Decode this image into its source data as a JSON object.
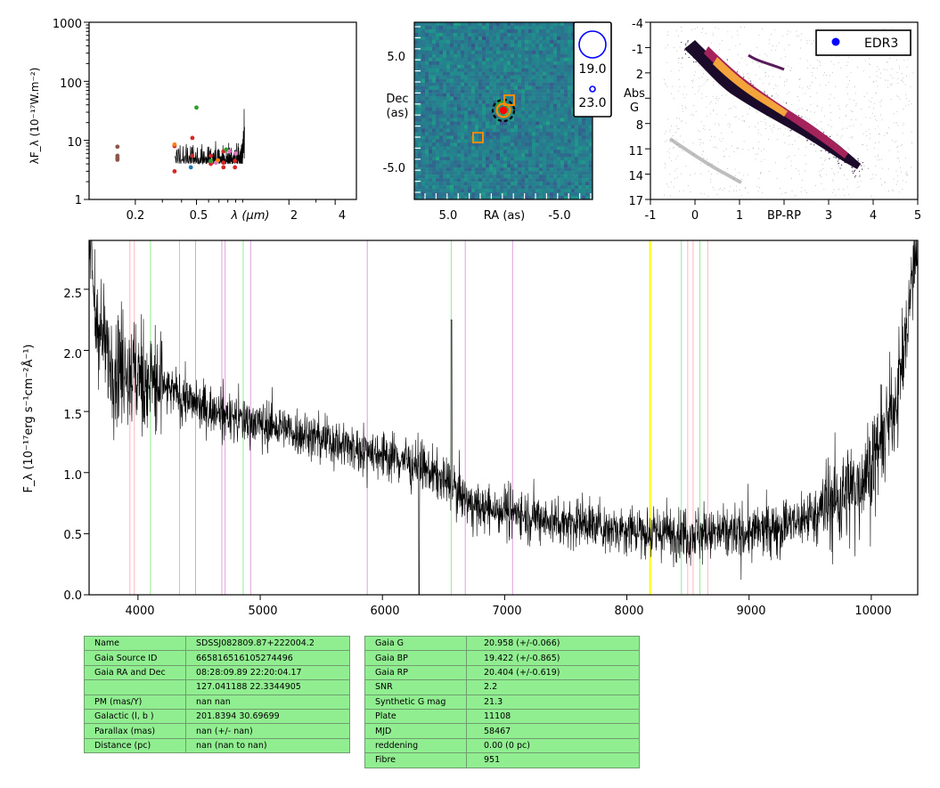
{
  "sed": {
    "ylabel": "λF_λ (10⁻¹⁷W.m⁻²)",
    "xlabel": "λ (μm)",
    "ytick_labels": [
      "1",
      "10",
      "100",
      "1000"
    ],
    "xtick_labels": [
      "0.2",
      "0.5",
      "2",
      "4"
    ]
  },
  "image": {
    "ylabel": [
      "Dec",
      "(as)"
    ],
    "xlabel": "RA (as)",
    "ytick_labels": [
      "5.0",
      "-5.0"
    ],
    "xtick_labels": [
      "5.0",
      "-5.0"
    ],
    "legend_labels": [
      "19.0",
      "23.0"
    ]
  },
  "cmd": {
    "ylabel": [
      "Abs",
      "G"
    ],
    "xlabel": "BP-RP",
    "ytick_labels": [
      "-4",
      "-1",
      "2",
      "5",
      "8",
      "11",
      "14",
      "17"
    ],
    "xtick_labels": [
      "-1",
      "0",
      "1",
      "2",
      "3",
      "4",
      "5"
    ],
    "legend_label": "EDR3",
    "legend_marker_color": "#0000ff"
  },
  "spectrum": {
    "ylabel": "F_λ (10⁻¹⁷erg s⁻¹cm⁻²Å⁻¹)",
    "ytick_labels": [
      "0.0",
      "0.5",
      "1.0",
      "1.5",
      "2.0",
      "2.5"
    ],
    "xtick_labels": [
      "4000",
      "5000",
      "6000",
      "7000",
      "8000",
      "9000",
      "10000"
    ]
  },
  "tables": {
    "left": [
      {
        "key": "Name",
        "value": "SDSSJ082809.87+222004.2"
      },
      {
        "key": "Gaia Source ID",
        "value": "665816516105274496"
      },
      {
        "key": "Gaia RA and Dec",
        "value": "08:28:09.89    22:20:04.17"
      },
      {
        "key": "",
        "value": "127.041188    22.3344905"
      },
      {
        "key": "PM (mas/Y)",
        "value": "nan    nan"
      },
      {
        "key": "Galactic (l, b )",
        "value": "201.8394    30.69699"
      },
      {
        "key": "Parallax (mas)",
        "value": "nan (+/- nan)"
      },
      {
        "key": "Distance (pc)",
        "value": "nan (nan to nan)"
      }
    ],
    "right": [
      {
        "key": "Gaia G",
        "value": "20.958 (+/-0.066)"
      },
      {
        "key": "Gaia BP",
        "value": "19.422 (+/-0.865)"
      },
      {
        "key": "Gaia RP",
        "value": "20.404 (+/-0.619)"
      },
      {
        "key": "SNR",
        "value": "2.2"
      },
      {
        "key": "Synthetic G mag",
        "value": "21.3"
      },
      {
        "key": "Plate",
        "value": "11108"
      },
      {
        "key": "MJD",
        "value": "58467"
      },
      {
        "key": "reddening",
        "value": "0.00 (0 pc)"
      },
      {
        "key": "Fibre",
        "value": "951"
      }
    ]
  },
  "chart_data": [
    {
      "type": "scatter",
      "panel": "sed",
      "xlabel": "λ (μm)",
      "ylabel": "λF_λ (10⁻¹⁷W.m⁻²)",
      "xscale": "log",
      "yscale": "log",
      "xlim": [
        0.1,
        5.5
      ],
      "ylim": [
        1,
        1000
      ],
      "series": [
        {
          "color": "#8c564b",
          "x": [
            0.153,
            0.153,
            0.153,
            0.153
          ],
          "y": [
            7.8,
            5.5,
            5.0,
            4.7
          ]
        },
        {
          "color": "#d62728",
          "x": [
            0.36,
            0.36,
            0.47,
            0.47,
            0.62,
            0.75,
            0.75,
            0.89,
            0.89,
            0.62,
            0.75
          ],
          "y": [
            8.0,
            3.0,
            11.0,
            5.5,
            4.0,
            4.2,
            3.5,
            4.5,
            3.5,
            5.5,
            6.5
          ]
        },
        {
          "color": "#2ca02c",
          "x": [
            0.5,
            0.78,
            0.62
          ],
          "y": [
            36.0,
            7.0,
            4.5
          ]
        },
        {
          "color": "#1f77b4",
          "x": [
            0.46
          ],
          "y": [
            3.5
          ]
        },
        {
          "color": "#e377c2",
          "x": [
            0.82,
            0.9,
            0.67
          ],
          "y": [
            6.5,
            6.0,
            4.2
          ]
        },
        {
          "color": "#ff7f0e",
          "x": [
            0.36,
            0.69
          ],
          "y": [
            8.5,
            4.6
          ]
        }
      ],
      "spectrum_overlay": {
        "color": "#000000",
        "x_range": [
          0.36,
          1.03
        ],
        "typical_y": [
          4,
          10
        ],
        "edge_spike_y": 34
      }
    },
    {
      "type": "heatmap",
      "panel": "image",
      "xlabel": "RA (as)",
      "ylabel": "Dec (as)",
      "xlim": [
        8,
        -8
      ],
      "ylim": [
        -8,
        8
      ],
      "colormap": "viridis",
      "markers": [
        {
          "shape": "circle",
          "color": "#ff0000",
          "x": 0.0,
          "y": 0.0,
          "note": "target, with orange ring and dashed black circle"
        },
        {
          "shape": "square",
          "color": "#ff8c00",
          "x": -0.6,
          "y": 0.8
        },
        {
          "shape": "square",
          "color": "#ff8c00",
          "x": 2.6,
          "y": -2.5
        },
        {
          "shape": "circle",
          "color": "#00ff00",
          "x": 0.5,
          "y": 0.5
        }
      ],
      "legend": [
        {
          "label": "19.0",
          "color": "#0000ff"
        },
        {
          "label": "23.0",
          "color": "#0000ff"
        }
      ]
    },
    {
      "type": "scatter",
      "panel": "cmd",
      "xlabel": "BP-RP",
      "ylabel": "Abs G",
      "xlim": [
        -1,
        5
      ],
      "ylim": [
        17,
        -4
      ],
      "colormap": "inferno density",
      "series": [
        {
          "name": "EDR3",
          "color": "#0000ff",
          "x": [],
          "y": []
        }
      ]
    },
    {
      "type": "line",
      "panel": "spectrum",
      "xlabel": "",
      "ylabel": "F_λ (10⁻¹⁷erg s⁻¹cm⁻²Å⁻¹)",
      "xlim": [
        3600,
        10380
      ],
      "ylim": [
        0,
        2.9
      ],
      "series": [
        {
          "color": "#000000",
          "x": [
            3600,
            3650,
            3700,
            3750,
            3800,
            3900,
            4000,
            4100,
            4200,
            4400,
            4600,
            4800,
            5000,
            5200,
            5400,
            5600,
            5800,
            6000,
            6200,
            6400,
            6560,
            6700,
            6800,
            7000,
            7200,
            7400,
            7600,
            7800,
            8000,
            8200,
            8400,
            8600,
            8800,
            9000,
            9200,
            9400,
            9600,
            9800,
            9900,
            10000,
            10100,
            10200,
            10300,
            10350
          ],
          "y": [
            2.9,
            2.3,
            2.1,
            1.95,
            1.9,
            1.85,
            1.8,
            1.75,
            1.7,
            1.6,
            1.5,
            1.45,
            1.4,
            1.35,
            1.3,
            1.25,
            1.2,
            1.15,
            1.1,
            1.0,
            0.9,
            0.75,
            0.7,
            0.7,
            0.65,
            0.6,
            0.6,
            0.55,
            0.55,
            0.5,
            0.5,
            0.5,
            0.5,
            0.5,
            0.55,
            0.6,
            0.7,
            0.85,
            0.9,
            1.05,
            1.3,
            1.6,
            2.2,
            2.8
          ]
        }
      ],
      "vertical_lines": [
        {
          "x": 3934,
          "color": "#ffb6c1"
        },
        {
          "x": 3970,
          "color": "#ffb6c1"
        },
        {
          "x": 4102,
          "color": "#90ee90"
        },
        {
          "x": 4340,
          "color": "#90ee90"
        },
        {
          "x": 4471,
          "color": "#dda0dd"
        },
        {
          "x": 4686,
          "color": "#dda0dd"
        },
        {
          "x": 4713,
          "color": "#dda0dd"
        },
        {
          "x": 4861,
          "color": "#90ee90"
        },
        {
          "x": 4922,
          "color": "#dda0dd"
        },
        {
          "x": 5876,
          "color": "#dda0dd"
        },
        {
          "x": 6563,
          "color": "#90ee90"
        },
        {
          "x": 6678,
          "color": "#dda0dd"
        },
        {
          "x": 7065,
          "color": "#dda0dd"
        },
        {
          "x": 8190,
          "color": "#ffff00"
        },
        {
          "x": 8446,
          "color": "#90ee90"
        },
        {
          "x": 8498,
          "color": "#ffb6c1"
        },
        {
          "x": 8542,
          "color": "#ffb6c1"
        },
        {
          "x": 8598,
          "color": "#90ee90"
        },
        {
          "x": 8662,
          "color": "#ffb6c1"
        }
      ]
    }
  ]
}
